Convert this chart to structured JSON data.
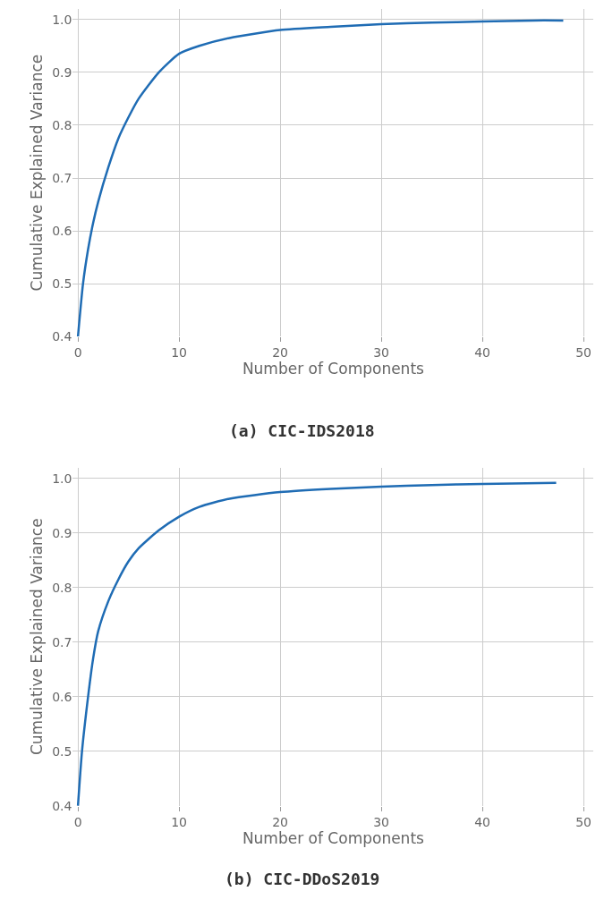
{
  "chart_data": [
    {
      "type": "line",
      "title": "(a) CIC-IDS2018",
      "xlabel": "Number of Components",
      "ylabel": "Cumulative Explained Variance",
      "xlim": [
        -0.5,
        51
      ],
      "ylim": [
        0.4,
        1.02
      ],
      "xticks": [
        0,
        10,
        20,
        30,
        40,
        50
      ],
      "yticks": [
        0.4,
        0.5,
        0.6,
        0.7,
        0.8,
        0.9,
        {
          "value": 1,
          "label": "1.0"
        }
      ],
      "grid": true,
      "series": [
        {
          "color": "#1f6cb4",
          "x": [
            0,
            0.5,
            1,
            1.5,
            2,
            3,
            4,
            5,
            6,
            8,
            10,
            12,
            15,
            20,
            25,
            30,
            35,
            40,
            45,
            48
          ],
          "values": [
            0.4,
            0.5,
            0.565,
            0.615,
            0.655,
            0.72,
            0.775,
            0.815,
            0.85,
            0.9,
            0.935,
            0.95,
            0.965,
            0.98,
            0.986,
            0.991,
            0.994,
            0.996,
            0.998,
            0.998
          ]
        }
      ]
    },
    {
      "type": "line",
      "title": "(b) CIC-DDoS2019",
      "xlabel": "Number of Components",
      "ylabel": "Cumulative Explained Variance",
      "xlim": [
        -0.5,
        51
      ],
      "ylim": [
        0.4,
        1.02
      ],
      "xticks": [
        0,
        10,
        20,
        30,
        40,
        50
      ],
      "yticks": [
        0.4,
        0.5,
        0.6,
        0.7,
        0.8,
        0.9,
        {
          "value": 1,
          "label": "1.0"
        }
      ],
      "grid": true,
      "series": [
        {
          "color": "#1f6cb4",
          "x": [
            0,
            0.4,
            1,
            1.5,
            2,
            3,
            4,
            5,
            6,
            8,
            10,
            12,
            15,
            20,
            25,
            30,
            35,
            40,
            47.3
          ],
          "values": [
            0.4,
            0.5,
            0.6,
            0.67,
            0.72,
            0.775,
            0.815,
            0.848,
            0.872,
            0.905,
            0.93,
            0.948,
            0.963,
            0.975,
            0.981,
            0.985,
            0.988,
            0.99,
            0.992
          ]
        }
      ]
    }
  ]
}
